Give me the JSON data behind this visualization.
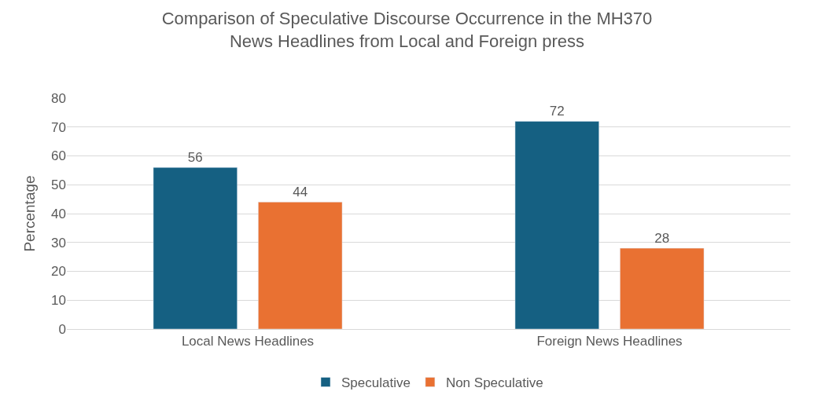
{
  "chart_data": {
    "type": "bar",
    "title": "Comparison of Speculative Discourse Occurrence in the MH370\nNews Headlines from Local and Foreign press",
    "ylabel": "Percentage",
    "categories": [
      "Local News Headlines",
      "Foreign News Headlines"
    ],
    "series": [
      {
        "name": "Speculative",
        "color": "#156082",
        "values": [
          56,
          72
        ]
      },
      {
        "name": "Non Speculative",
        "color": "#e97132",
        "values": [
          44,
          28
        ]
      }
    ],
    "ylim": [
      0,
      80
    ],
    "yticks": [
      0,
      10,
      20,
      30,
      40,
      50,
      60,
      70,
      80
    ],
    "grid": "y",
    "legend": "bottom",
    "data_labels": true
  }
}
